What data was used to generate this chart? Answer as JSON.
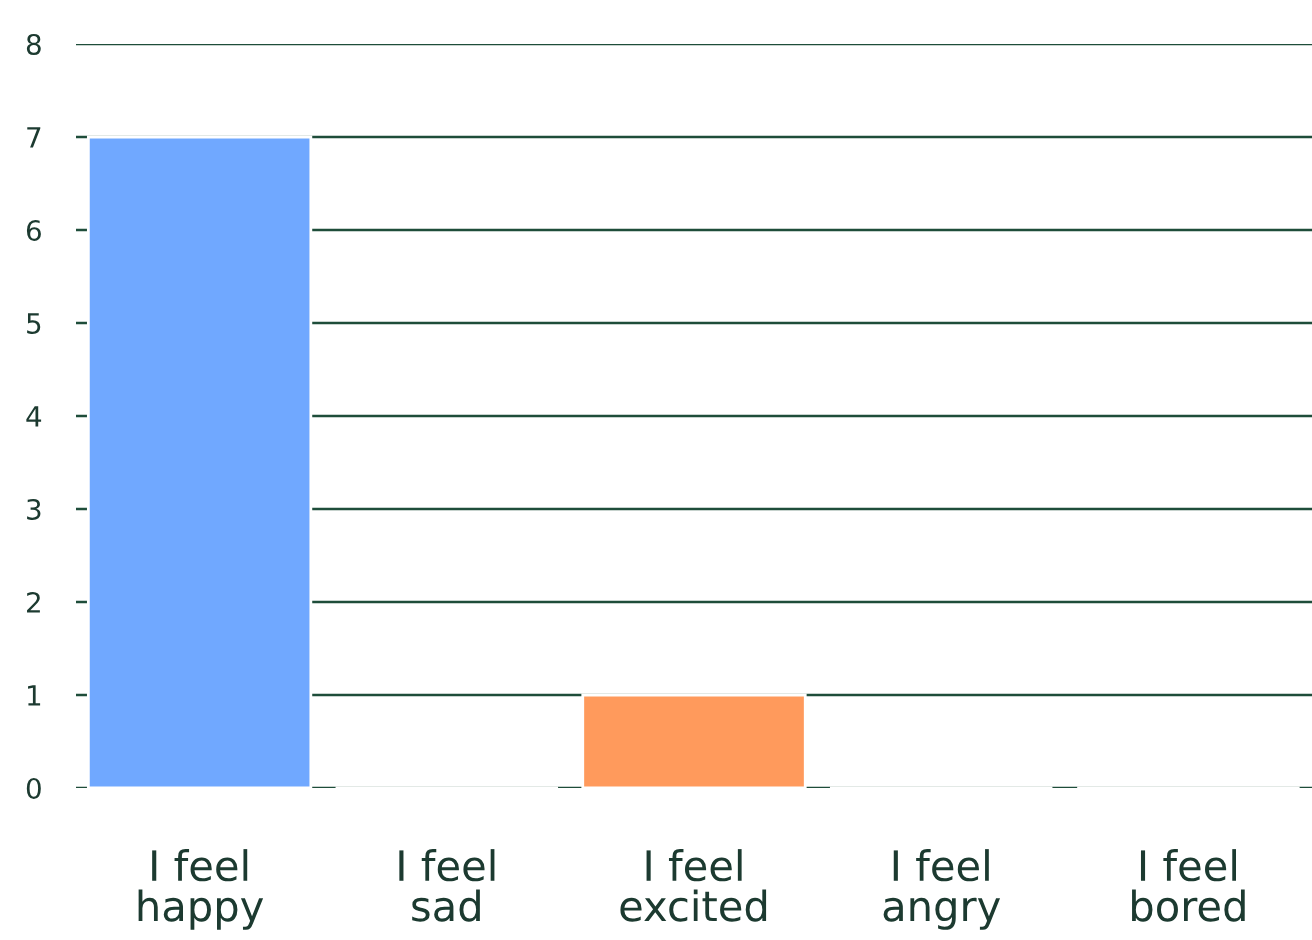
{
  "chart_data": {
    "type": "bar",
    "categories": [
      "I feel\nhappy",
      "I feel\nsad",
      "I feel\nexcited",
      "I feel\nangry",
      "I feel\nbored"
    ],
    "values": [
      7,
      0,
      1,
      0,
      0
    ],
    "colors": [
      "#70a8ff",
      null,
      "#ff9a5c",
      null,
      null
    ],
    "ylim": [
      0,
      8
    ],
    "yticks": [
      0,
      1,
      2,
      3,
      4,
      5,
      6,
      7,
      8
    ],
    "grid": "y",
    "legend": false
  }
}
